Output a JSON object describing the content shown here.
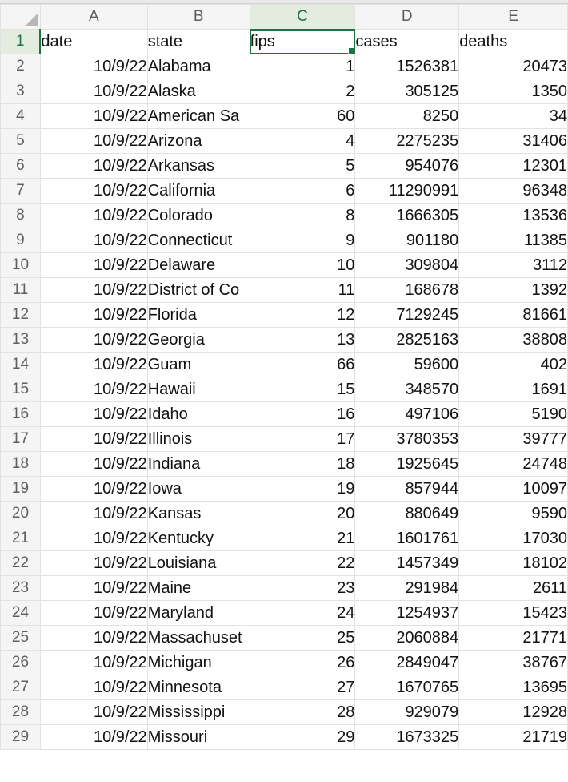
{
  "columns": [
    "A",
    "B",
    "C",
    "D",
    "E"
  ],
  "active_column": "C",
  "selected_cell": "C1",
  "accent_color": "#207245",
  "header_row": {
    "row": "1",
    "a": "date",
    "b": "state",
    "c": "fips",
    "d": "cases",
    "e": "deaths"
  },
  "rows": [
    {
      "row": "2",
      "date": "10/9/22",
      "state": "Alabama",
      "fips": "1",
      "cases": "1526381",
      "deaths": "20473"
    },
    {
      "row": "3",
      "date": "10/9/22",
      "state": "Alaska",
      "fips": "2",
      "cases": "305125",
      "deaths": "1350"
    },
    {
      "row": "4",
      "date": "10/9/22",
      "state": "American Sa",
      "fips": "60",
      "cases": "8250",
      "deaths": "34"
    },
    {
      "row": "5",
      "date": "10/9/22",
      "state": "Arizona",
      "fips": "4",
      "cases": "2275235",
      "deaths": "31406"
    },
    {
      "row": "6",
      "date": "10/9/22",
      "state": "Arkansas",
      "fips": "5",
      "cases": "954076",
      "deaths": "12301"
    },
    {
      "row": "7",
      "date": "10/9/22",
      "state": "California",
      "fips": "6",
      "cases": "11290991",
      "deaths": "96348"
    },
    {
      "row": "8",
      "date": "10/9/22",
      "state": "Colorado",
      "fips": "8",
      "cases": "1666305",
      "deaths": "13536"
    },
    {
      "row": "9",
      "date": "10/9/22",
      "state": "Connecticut",
      "fips": "9",
      "cases": "901180",
      "deaths": "11385"
    },
    {
      "row": "10",
      "date": "10/9/22",
      "state": "Delaware",
      "fips": "10",
      "cases": "309804",
      "deaths": "3112"
    },
    {
      "row": "11",
      "date": "10/9/22",
      "state": "District of Co",
      "fips": "11",
      "cases": "168678",
      "deaths": "1392"
    },
    {
      "row": "12",
      "date": "10/9/22",
      "state": "Florida",
      "fips": "12",
      "cases": "7129245",
      "deaths": "81661"
    },
    {
      "row": "13",
      "date": "10/9/22",
      "state": "Georgia",
      "fips": "13",
      "cases": "2825163",
      "deaths": "38808"
    },
    {
      "row": "14",
      "date": "10/9/22",
      "state": "Guam",
      "fips": "66",
      "cases": "59600",
      "deaths": "402"
    },
    {
      "row": "15",
      "date": "10/9/22",
      "state": "Hawaii",
      "fips": "15",
      "cases": "348570",
      "deaths": "1691"
    },
    {
      "row": "16",
      "date": "10/9/22",
      "state": "Idaho",
      "fips": "16",
      "cases": "497106",
      "deaths": "5190"
    },
    {
      "row": "17",
      "date": "10/9/22",
      "state": "Illinois",
      "fips": "17",
      "cases": "3780353",
      "deaths": "39777"
    },
    {
      "row": "18",
      "date": "10/9/22",
      "state": "Indiana",
      "fips": "18",
      "cases": "1925645",
      "deaths": "24748"
    },
    {
      "row": "19",
      "date": "10/9/22",
      "state": "Iowa",
      "fips": "19",
      "cases": "857944",
      "deaths": "10097"
    },
    {
      "row": "20",
      "date": "10/9/22",
      "state": "Kansas",
      "fips": "20",
      "cases": "880649",
      "deaths": "9590"
    },
    {
      "row": "21",
      "date": "10/9/22",
      "state": "Kentucky",
      "fips": "21",
      "cases": "1601761",
      "deaths": "17030"
    },
    {
      "row": "22",
      "date": "10/9/22",
      "state": "Louisiana",
      "fips": "22",
      "cases": "1457349",
      "deaths": "18102"
    },
    {
      "row": "23",
      "date": "10/9/22",
      "state": "Maine",
      "fips": "23",
      "cases": "291984",
      "deaths": "2611"
    },
    {
      "row": "24",
      "date": "10/9/22",
      "state": "Maryland",
      "fips": "24",
      "cases": "1254937",
      "deaths": "15423"
    },
    {
      "row": "25",
      "date": "10/9/22",
      "state": "Massachuset",
      "fips": "25",
      "cases": "2060884",
      "deaths": "21771"
    },
    {
      "row": "26",
      "date": "10/9/22",
      "state": "Michigan",
      "fips": "26",
      "cases": "2849047",
      "deaths": "38767"
    },
    {
      "row": "27",
      "date": "10/9/22",
      "state": "Minnesota",
      "fips": "27",
      "cases": "1670765",
      "deaths": "13695"
    },
    {
      "row": "28",
      "date": "10/9/22",
      "state": "Mississippi",
      "fips": "28",
      "cases": "929079",
      "deaths": "12928"
    },
    {
      "row": "29",
      "date": "10/9/22",
      "state": "Missouri",
      "fips": "29",
      "cases": "1673325",
      "deaths": "21719"
    }
  ]
}
